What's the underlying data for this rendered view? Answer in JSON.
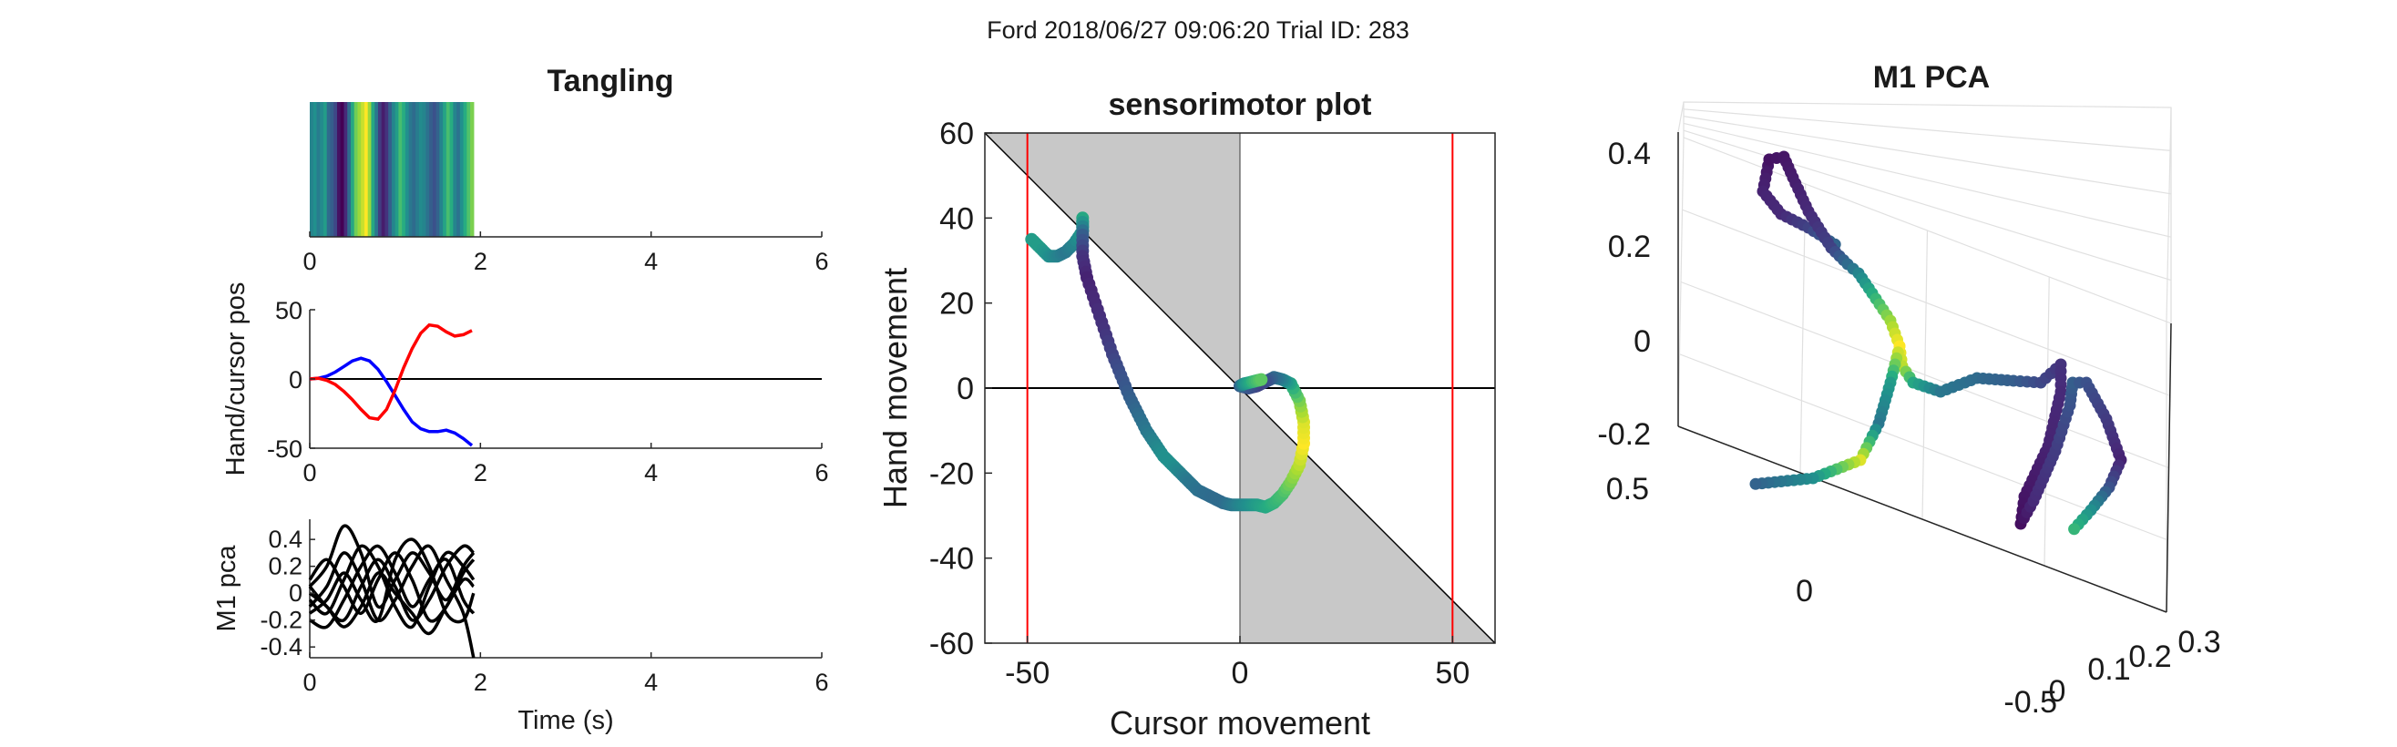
{
  "figure": {
    "suptitle": "Ford 2018/06/27 09:06:20 Trial ID: 283"
  },
  "chart_data": [
    {
      "id": "tangling",
      "type": "heatmap",
      "title": "Tangling",
      "xlabel": "",
      "ylabel": "",
      "xlim": [
        0,
        6
      ],
      "xticks": [
        0,
        2,
        4,
        6
      ],
      "tick_labels": [
        "0",
        "2",
        "4",
        "6"
      ],
      "colormap": "viridis",
      "t_end": 1.92,
      "values": [
        0.45,
        0.5,
        0.42,
        0.48,
        0.55,
        0.35,
        0.3,
        0.22,
        0.05,
        0.0,
        0.12,
        0.35,
        0.6,
        0.78,
        0.85,
        0.92,
        1.0,
        0.85,
        0.6,
        0.4,
        0.18,
        0.08,
        0.15,
        0.3,
        0.45,
        0.55,
        0.7,
        0.62,
        0.5,
        0.4,
        0.35,
        0.42,
        0.48,
        0.45,
        0.38,
        0.3,
        0.25,
        0.32,
        0.45,
        0.58,
        0.7,
        0.62,
        0.45,
        0.38,
        0.5,
        0.62,
        0.72,
        0.8
      ]
    },
    {
      "id": "hand-cursor",
      "type": "line",
      "title": "",
      "xlabel": "",
      "ylabel": "Hand/cursor pos",
      "xlim": [
        0,
        6
      ],
      "ylim": [
        -50,
        50
      ],
      "xticks": [
        0,
        2,
        4,
        6
      ],
      "yticks": [
        -50,
        0,
        50
      ],
      "x_tick_labels": [
        "0",
        "2",
        "4",
        "6"
      ],
      "y_tick_labels": [
        "-50",
        "0",
        "50"
      ],
      "series": [
        {
          "color": "#0000ff",
          "x": [
            0,
            0.1,
            0.2,
            0.3,
            0.4,
            0.5,
            0.6,
            0.7,
            0.8,
            0.9,
            1.0,
            1.1,
            1.2,
            1.3,
            1.4,
            1.5,
            1.6,
            1.7,
            1.8,
            1.9
          ],
          "values": [
            0,
            0.5,
            2,
            5,
            9,
            13,
            15,
            13,
            7,
            -2,
            -12,
            -22,
            -31,
            -36,
            -38,
            -38,
            -37,
            -39,
            -43,
            -48
          ]
        },
        {
          "color": "#ff0000",
          "x": [
            0,
            0.1,
            0.2,
            0.3,
            0.4,
            0.5,
            0.6,
            0.7,
            0.8,
            0.9,
            1.0,
            1.1,
            1.2,
            1.3,
            1.4,
            1.5,
            1.6,
            1.7,
            1.8,
            1.9
          ],
          "values": [
            0,
            0.5,
            -1,
            -4,
            -9,
            -15,
            -22,
            -28,
            -29,
            -22,
            -8,
            8,
            22,
            33,
            39,
            38,
            34,
            31,
            32,
            35
          ]
        }
      ],
      "zero_line": 0
    },
    {
      "id": "m1-pca",
      "type": "line",
      "title": "",
      "xlabel": "Time (s)",
      "ylabel": "M1 pca",
      "xlim": [
        0,
        6
      ],
      "ylim": [
        -0.48,
        0.55
      ],
      "xticks": [
        0,
        2,
        4,
        6
      ],
      "yticks": [
        0.4,
        0.2,
        0,
        -0.2,
        -0.4
      ],
      "x_tick_labels": [
        "0",
        "2",
        "4",
        "6"
      ],
      "y_tick_labels": [
        "0.4",
        "0.2",
        "0",
        "-0.2",
        "-0.4"
      ],
      "x": [
        0,
        0.2,
        0.4,
        0.6,
        0.8,
        1.0,
        1.2,
        1.4,
        1.6,
        1.8,
        1.92
      ],
      "series": [
        {
          "values": [
            0.05,
            0.2,
            0.5,
            0.3,
            -0.1,
            0.1,
            0.3,
            0.15,
            -0.05,
            0.2,
            0.3
          ]
        },
        {
          "values": [
            -0.05,
            -0.15,
            0.1,
            0.35,
            0.2,
            -0.1,
            -0.25,
            0.05,
            0.3,
            0.2,
            0.1
          ]
        },
        {
          "values": [
            -0.1,
            0.05,
            0.3,
            0.1,
            -0.2,
            -0.05,
            0.2,
            0.35,
            0.1,
            -0.15,
            -0.48
          ]
        },
        {
          "values": [
            0.1,
            0.25,
            0.05,
            -0.15,
            0.1,
            0.3,
            0.1,
            -0.2,
            -0.1,
            0.15,
            0.25
          ]
        },
        {
          "values": [
            -0.2,
            -0.25,
            -0.05,
            0.2,
            0.35,
            0.15,
            -0.1,
            0.1,
            0.25,
            -0.05,
            -0.15
          ]
        },
        {
          "values": [
            0.0,
            -0.1,
            -0.25,
            -0.1,
            0.15,
            0.0,
            -0.15,
            -0.3,
            -0.1,
            0.1,
            0.05
          ]
        },
        {
          "values": [
            -0.15,
            -0.05,
            0.15,
            -0.05,
            -0.2,
            0.25,
            0.4,
            0.2,
            -0.15,
            -0.2,
            0.0
          ]
        },
        {
          "values": [
            0.05,
            -0.1,
            -0.2,
            0.05,
            0.25,
            0.05,
            -0.2,
            -0.05,
            0.2,
            0.35,
            0.3
          ]
        }
      ]
    },
    {
      "id": "sensorimotor",
      "type": "scatter",
      "title": "sensorimotor plot",
      "xlabel": "Cursor movement",
      "ylabel": "Hand movement",
      "xlim": [
        -60,
        60
      ],
      "ylim": [
        -60,
        60
      ],
      "xticks": [
        -50,
        0,
        50
      ],
      "yticks": [
        60,
        40,
        20,
        0,
        -20,
        -40,
        -60
      ],
      "x_tick_labels": [
        "-50",
        "0",
        "50"
      ],
      "y_tick_labels": [
        "60",
        "40",
        "20",
        "0",
        "-20",
        "-40",
        "-60"
      ],
      "vlines": [
        -50,
        50
      ],
      "vline_color": "#ff0000",
      "shading_color": "#c8c8c8",
      "colormap": "viridis",
      "x": [
        -49,
        -47,
        -45,
        -43,
        -41,
        -39,
        -37,
        -37,
        -37,
        -37,
        -36,
        -34,
        -32,
        -30,
        -28,
        -26,
        -24,
        -22,
        -20,
        -18,
        -16,
        -14,
        -12,
        -10,
        -8,
        -6,
        -4,
        -2,
        0,
        2,
        4,
        6,
        8,
        10,
        12,
        14,
        15,
        15,
        14,
        12,
        10,
        8,
        6,
        4,
        2,
        0,
        1,
        3,
        5
      ],
      "y": [
        35,
        33,
        31,
        31,
        32,
        34,
        37,
        40,
        36,
        31,
        26,
        20,
        14,
        8,
        3,
        -2,
        -6,
        -10,
        -13,
        -16,
        -18,
        -20,
        -22,
        -24,
        -25,
        -26,
        -27,
        -27.5,
        -27.5,
        -27.5,
        -27.5,
        -28,
        -27,
        -25,
        -22,
        -18,
        -13,
        -8,
        -3,
        1,
        2,
        2.5,
        1.5,
        0.5,
        0,
        0.5,
        1,
        1.5,
        2
      ],
      "c": [
        0.55,
        0.55,
        0.5,
        0.45,
        0.4,
        0.45,
        0.55,
        0.6,
        0.3,
        0.15,
        0.1,
        0.12,
        0.15,
        0.2,
        0.25,
        0.3,
        0.35,
        0.4,
        0.45,
        0.5,
        0.5,
        0.45,
        0.4,
        0.38,
        0.36,
        0.35,
        0.35,
        0.4,
        0.45,
        0.5,
        0.55,
        0.6,
        0.65,
        0.7,
        0.8,
        0.9,
        1.0,
        0.95,
        0.8,
        0.6,
        0.45,
        0.35,
        0.25,
        0.2,
        0.25,
        0.3,
        0.5,
        0.65,
        0.75
      ]
    },
    {
      "id": "m1-pca-3d",
      "type": "scatter",
      "title": "M1 PCA",
      "xlabel": "",
      "ylabel": "",
      "zlim": [
        -0.2,
        0.4
      ],
      "zticks": [
        0.4,
        0.2,
        0,
        -0.2
      ],
      "z_tick_labels": [
        "0.4",
        "0.2",
        "0",
        "-0.2"
      ],
      "y_tick_labels": [
        "0.5",
        "0",
        "-0.5"
      ],
      "x_tick_labels": [
        "0",
        "0.1",
        "0.2",
        "0.3"
      ],
      "colormap": "viridis",
      "grid": true
    }
  ]
}
